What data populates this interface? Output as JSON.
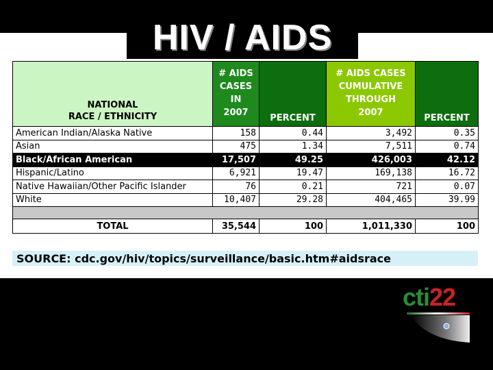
{
  "title": "HIV / AIDS",
  "table": {
    "headers": {
      "race_line1": "NATIONAL",
      "race_line2": "RACE / ETHNICITY",
      "aids2007": [
        "# AIDS",
        "CASES",
        "IN",
        "2007"
      ],
      "percent1": "PERCENT",
      "cumulative": [
        "# AIDS CASES",
        "CUMULATIVE",
        "THROUGH",
        "2007"
      ],
      "percent2": "PERCENT"
    },
    "rows": [
      {
        "name": "American Indian/Alaska Native",
        "cases2007": "158",
        "pct2007": "0.44",
        "cumulative": "3,492",
        "pctcum": "0.35"
      },
      {
        "name": "Asian",
        "cases2007": "475",
        "pct2007": "1.34",
        "cumulative": "7,511",
        "pctcum": "0.74"
      },
      {
        "name": "Black/African American",
        "cases2007": "17,507",
        "pct2007": "49.25",
        "cumulative": "426,003",
        "pctcum": "42.12"
      },
      {
        "name": "Hispanic/Latino",
        "cases2007": "6,921",
        "pct2007": "19.47",
        "cumulative": "169,138",
        "pctcum": "16.72"
      },
      {
        "name": "Native Hawaiian/Other Pacific Islander",
        "cases2007": "76",
        "pct2007": "0.21",
        "cumulative": "721",
        "pctcum": "0.07"
      },
      {
        "name": "White",
        "cases2007": "10,407",
        "pct2007": "29.28",
        "cumulative": "404,465",
        "pctcum": "39.99"
      }
    ],
    "total": {
      "label": "TOTAL",
      "cases2007": "35,544",
      "pct2007": "100",
      "cumulative": "1,011,330",
      "pctcum": "100"
    }
  },
  "source": "SOURCE: cdc.gov/hiv/topics/surveillance/basic.htm#aidsrace",
  "logo": {
    "part1": "cti",
    "part2": "22"
  },
  "colors": {
    "header_light_green": "#ccf5c4",
    "header_green": "#1e8a1e",
    "header_dark_green": "#0d6e0d",
    "header_lime": "#8cc800",
    "source_bg": "#d6f0f8",
    "logo_green": "#2a8c3a",
    "logo_red": "#cc2222"
  }
}
